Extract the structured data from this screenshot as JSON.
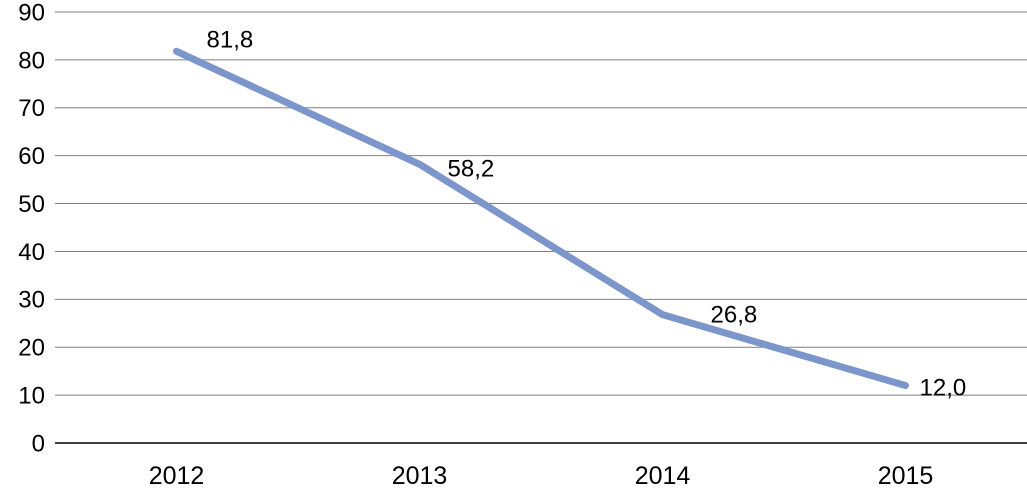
{
  "chart_data": {
    "type": "line",
    "title": "",
    "xlabel": "",
    "ylabel": "",
    "categories": [
      "2012",
      "2013",
      "2014",
      "2015"
    ],
    "values": [
      81.8,
      58.2,
      26.8,
      12.0
    ],
    "data_labels": [
      "81,8",
      "58,2",
      "26,8",
      "12,0"
    ],
    "ylim": [
      0,
      90
    ],
    "ytick_step": 10,
    "ytick_labels": [
      "0",
      "10",
      "20",
      "30",
      "40",
      "50",
      "60",
      "70",
      "80",
      "90"
    ],
    "grid": "horizontal",
    "legend": "none",
    "colors": {
      "line": "#7C95CB",
      "gridline": "#7f7f7f",
      "axis": "#000000",
      "text": "#000000",
      "background": "#ffffff"
    }
  }
}
